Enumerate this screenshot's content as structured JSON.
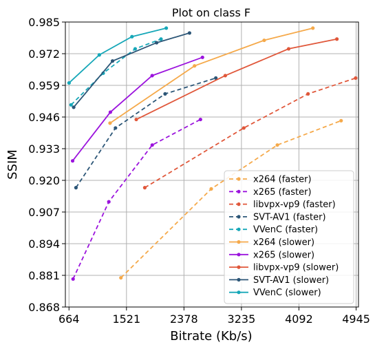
{
  "chart_data": {
    "type": "line",
    "title": "Plot on class F",
    "xlabel": "Bitrate (Kb/s)",
    "ylabel": "SSIM",
    "xlim": [
      610,
      4980
    ],
    "ylim": [
      0.868,
      0.985
    ],
    "xticks": [
      664,
      1521,
      2378,
      3235,
      4092,
      4945
    ],
    "yticks": [
      0.868,
      0.881,
      0.894,
      0.907,
      0.92,
      0.933,
      0.946,
      0.959,
      0.972,
      0.985
    ],
    "ytick_labels": [
      "0.868",
      "0.881",
      "0.894",
      "0.907",
      "0.920",
      "0.933",
      "0.946",
      "0.959",
      "0.972",
      "0.985"
    ],
    "grid": true,
    "legend_position": "lower-right",
    "series": [
      {
        "name": "x264 (faster)",
        "color": "#f5a94a",
        "dash": true,
        "x": [
          1438,
          2785,
          3770,
          4721
        ],
        "y": [
          0.88,
          0.9165,
          0.9345,
          0.9445
        ]
      },
      {
        "name": "x265 (faster)",
        "color": "#9b13dd",
        "dash": true,
        "x": [
          725,
          1258,
          1905,
          2624
        ],
        "y": [
          0.8795,
          0.9112,
          0.9345,
          0.945
        ]
      },
      {
        "name": "libvpx-vp9 (faster)",
        "color": "#e0573a",
        "dash": true,
        "x": [
          1794,
          3270,
          4228,
          4938
        ],
        "y": [
          0.917,
          0.9415,
          0.9555,
          0.962
        ]
      },
      {
        "name": "SVT-AV1 (faster)",
        "color": "#2c5677",
        "dash": true,
        "x": [
          768,
          1357,
          2097,
          2853
        ],
        "y": [
          0.917,
          0.9415,
          0.9555,
          0.962
        ]
      },
      {
        "name": "VVenC (faster)",
        "color": "#16a7b8",
        "dash": true,
        "x": [
          695,
          1174,
          1651,
          2036
        ],
        "y": [
          0.951,
          0.964,
          0.974,
          0.978
        ]
      },
      {
        "name": "x264 (slower)",
        "color": "#f5a94a",
        "dash": false,
        "x": [
          1276,
          2536,
          3574,
          4300
        ],
        "y": [
          0.9435,
          0.967,
          0.9775,
          0.9825
        ]
      },
      {
        "name": "x265 (slower)",
        "color": "#9b13dd",
        "dash": false,
        "x": [
          718,
          1281,
          1904,
          2654
        ],
        "y": [
          0.928,
          0.948,
          0.963,
          0.9705
        ]
      },
      {
        "name": "libvpx-vp9 (slower)",
        "color": "#e0573a",
        "dash": false,
        "x": [
          1667,
          2994,
          3939,
          4658
        ],
        "y": [
          0.945,
          0.963,
          0.974,
          0.978
        ]
      },
      {
        "name": "SVT-AV1 (slower)",
        "color": "#2c5677",
        "dash": false,
        "x": [
          734,
          1313,
          1970,
          2461
        ],
        "y": [
          0.95,
          0.969,
          0.9765,
          0.9805
        ]
      },
      {
        "name": "VVenC (slower)",
        "color": "#16a7b8",
        "dash": false,
        "x": [
          665,
          1116,
          1603,
          2114
        ],
        "y": [
          0.96,
          0.9715,
          0.979,
          0.9825
        ]
      }
    ]
  }
}
